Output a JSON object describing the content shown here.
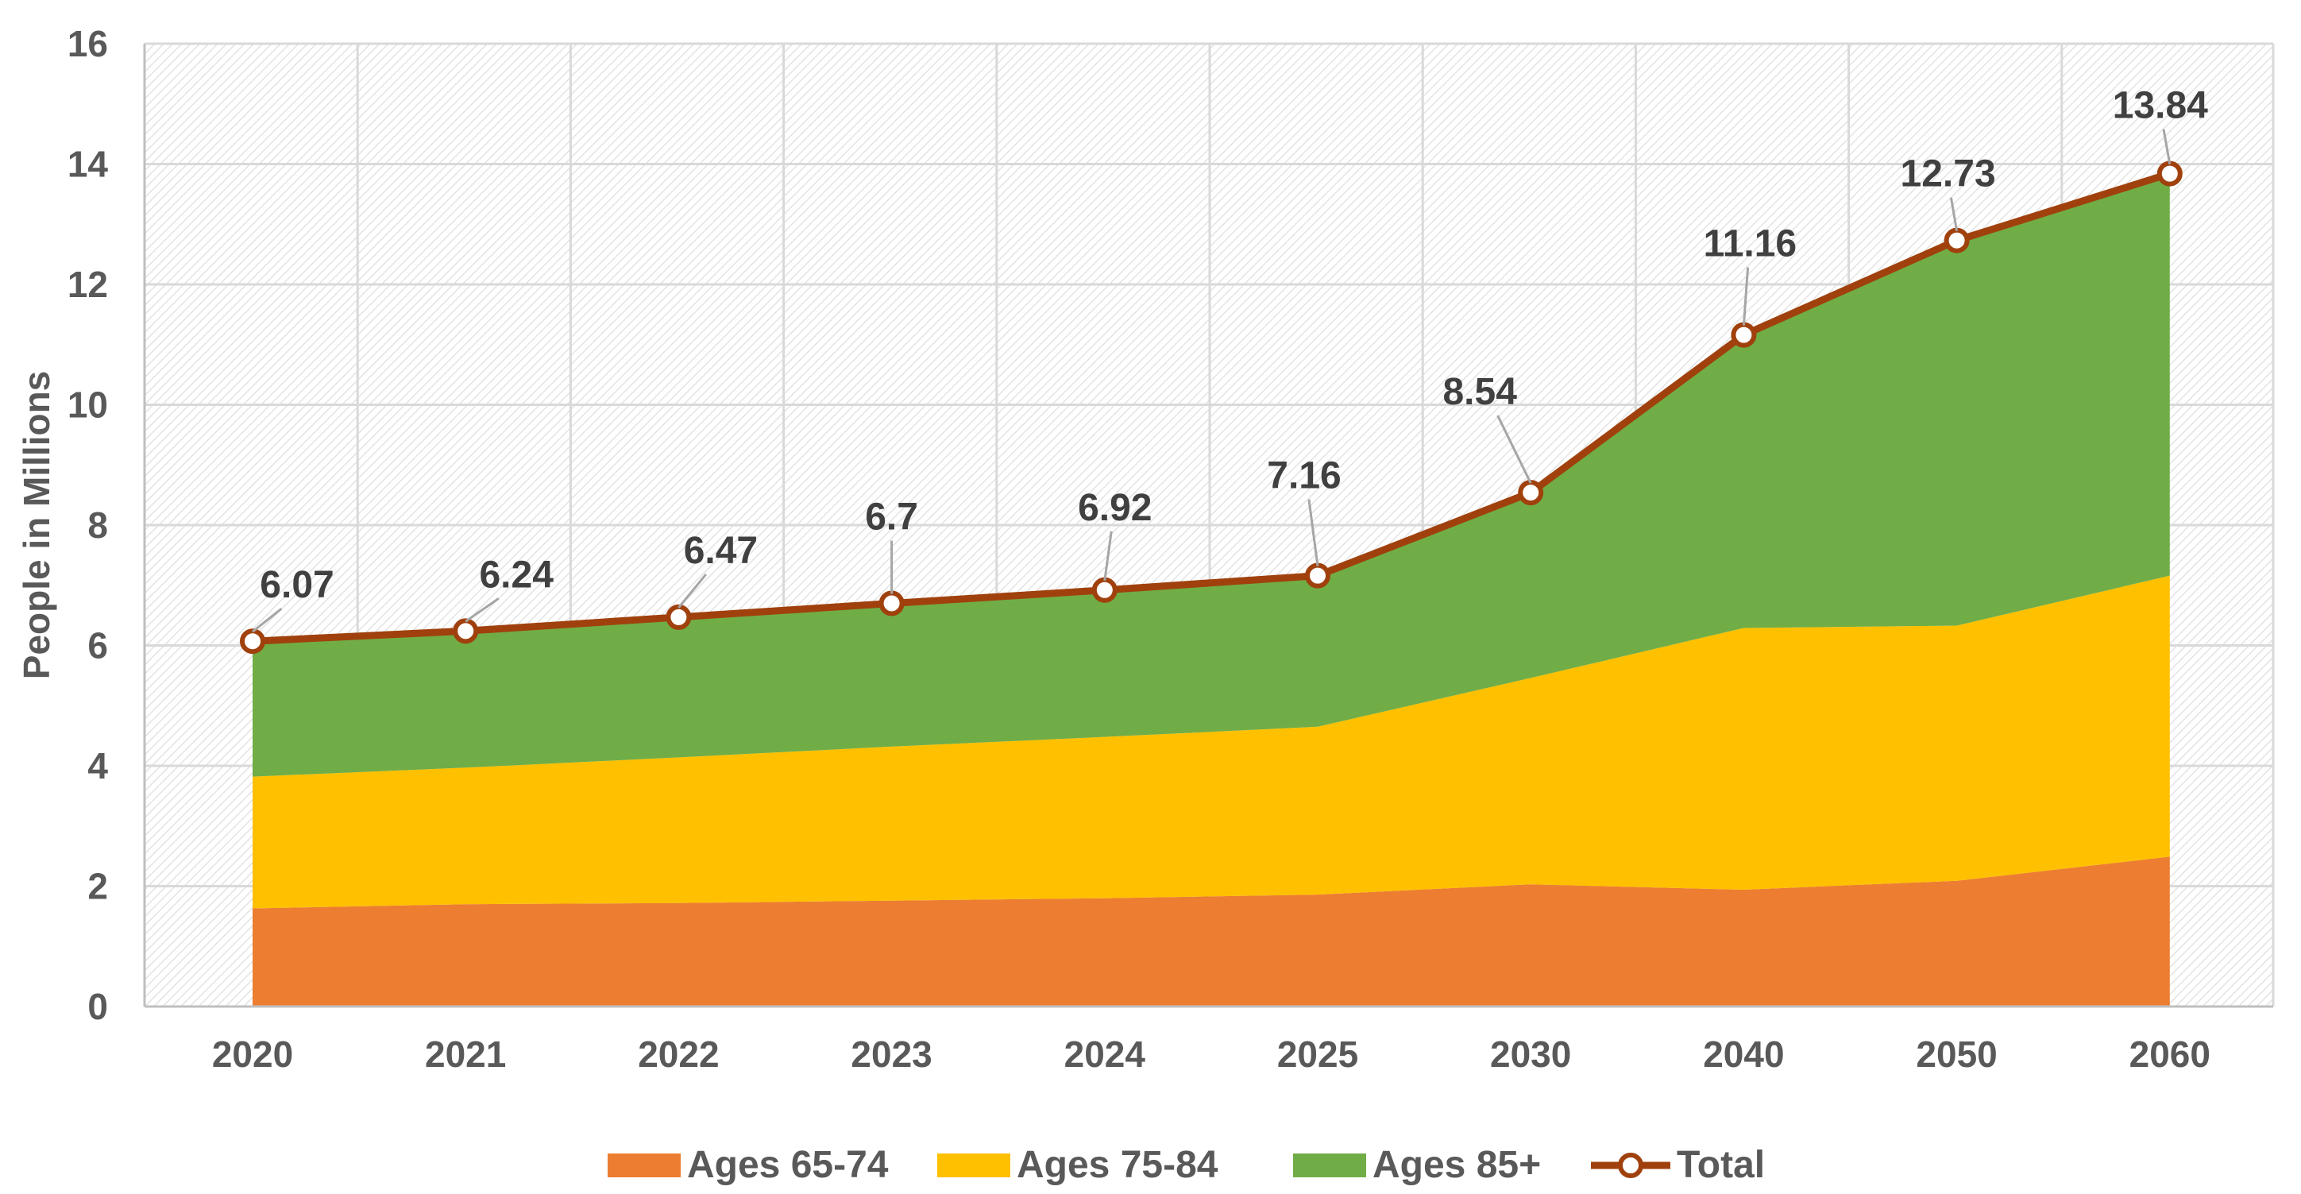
{
  "chart_data": {
    "type": "area",
    "stacked": true,
    "categories": [
      "2020",
      "2021",
      "2022",
      "2023",
      "2024",
      "2025",
      "2030",
      "2040",
      "2050",
      "2060"
    ],
    "series": [
      {
        "name": "Ages 65-74",
        "color": "#ED7D31",
        "values": [
          1.63,
          1.7,
          1.72,
          1.76,
          1.8,
          1.86,
          2.03,
          1.94,
          2.09,
          2.49
        ]
      },
      {
        "name": "Ages 75-84",
        "color": "#FFC000",
        "values": [
          2.19,
          2.27,
          2.42,
          2.56,
          2.68,
          2.79,
          3.43,
          4.35,
          4.24,
          4.67
        ]
      },
      {
        "name": "Ages 85+",
        "color": "#70AD47",
        "values": [
          2.25,
          2.27,
          2.33,
          2.38,
          2.44,
          2.51,
          3.08,
          4.87,
          6.4,
          6.68
        ]
      }
    ],
    "total": {
      "name": "Total",
      "color": "#A0410D",
      "values": [
        6.07,
        6.24,
        6.47,
        6.7,
        6.92,
        7.16,
        8.54,
        11.16,
        12.73,
        13.84
      ],
      "labels": [
        "6.07",
        "6.24",
        "6.47",
        "6.7",
        "6.92",
        "7.16",
        "8.54",
        "11.16",
        "12.73",
        "13.84"
      ]
    },
    "ylabel": "People in Millions",
    "xlabel": "",
    "ylim": [
      0,
      16
    ],
    "yticks": [
      "0",
      "2",
      "4",
      "6",
      "8",
      "10",
      "12",
      "14",
      "16"
    ],
    "grid": true,
    "legend_position": "bottom"
  }
}
